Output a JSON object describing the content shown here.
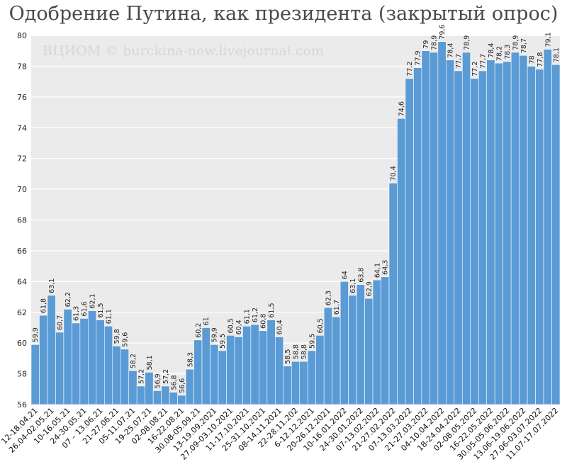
{
  "chart_data": {
    "type": "bar",
    "title": "Одобрение Путина, как президента (закрытый опрос)",
    "watermark": "ВЦИОМ © burckina-new.livejournal.com",
    "ylim": [
      56,
      80
    ],
    "yticks": [
      "56",
      "58",
      "60",
      "62",
      "64",
      "66",
      "68",
      "70",
      "72",
      "74",
      "76",
      "78",
      "80"
    ],
    "grid": true,
    "bar_color": "#5b9bd5",
    "plot_background": "#ebebeb",
    "xtick_labels": [
      "12-18.04.21",
      "26.04-02.05.21",
      "10-16.05.21",
      "24-30.05.21",
      "07 – 13.06.21",
      "21-27.06.21",
      "05-11.07.21",
      "19-25.07.21",
      "02-08.08.21",
      "16-22.08.21",
      "30.08-05.09.21",
      "13-19.09.2021",
      "27.09-03.10.2021",
      "11-17.10.2021",
      "25-31.10.2021",
      "08-14.11.2021",
      "22-28.11.202",
      "6-12.12.2021",
      "20-26.12.2021",
      "10-16.01.2022",
      "24-30.01.2022",
      "07-13.02.2022",
      "21-27.02.2022",
      "07-13.03.2022",
      "21-27.03.2022",
      "04-10.04.2022",
      "18-24.04.2022",
      "02-08.05.2022",
      "16-22.05.2022",
      "30.05-05.06.2022",
      "13.06-19.06.2022",
      "27.06-03.07.2022",
      "11.07-17.07.2022"
    ],
    "value_labels": [
      "59,9",
      "61,8",
      "63,1",
      "60,7",
      "62,2",
      "61,3",
      "61,6",
      "62,1",
      "61,5",
      "61,1",
      "59,8",
      "59,6",
      "58,2",
      "57,2",
      "58,1",
      "56,9",
      "57,2",
      "56,8",
      "56,6",
      "58,3",
      "60,2",
      "61",
      "59,9",
      "59,5",
      "60,5",
      "60,4",
      "61,1",
      "61,2",
      "60,8",
      "61,5",
      "60,4",
      "58,5",
      "58,8",
      "58,8",
      "59,5",
      "60,5",
      "62,3",
      "61,7",
      "64",
      "63,1",
      "63,8",
      "62,9",
      "64,1",
      "64,3",
      "70,4",
      "74,6",
      "77,2",
      "77,9",
      "79",
      "78,9",
      "79,6",
      "78,4",
      "77,7",
      "78,9",
      "77,2",
      "77,7",
      "78,4",
      "78,2",
      "78,3",
      "78,9",
      "78,7",
      "78",
      "77,8",
      "79,1",
      "78,1"
    ],
    "values": [
      59.9,
      61.8,
      63.1,
      60.7,
      62.2,
      61.3,
      61.6,
      62.1,
      61.5,
      61.1,
      59.8,
      59.6,
      58.2,
      57.2,
      58.1,
      56.9,
      57.2,
      56.8,
      56.6,
      58.3,
      60.2,
      61,
      59.9,
      59.5,
      60.5,
      60.4,
      61.1,
      61.2,
      60.8,
      61.5,
      60.4,
      58.5,
      58.8,
      58.8,
      59.5,
      60.5,
      62.3,
      61.7,
      64,
      63.1,
      63.8,
      62.9,
      64.1,
      64.3,
      70.4,
      74.6,
      77.2,
      77.9,
      79,
      78.9,
      79.6,
      78.4,
      77.7,
      78.9,
      77.2,
      77.7,
      78.4,
      78.2,
      78.3,
      78.9,
      78.7,
      78,
      77.8,
      79.1,
      78.1
    ]
  }
}
